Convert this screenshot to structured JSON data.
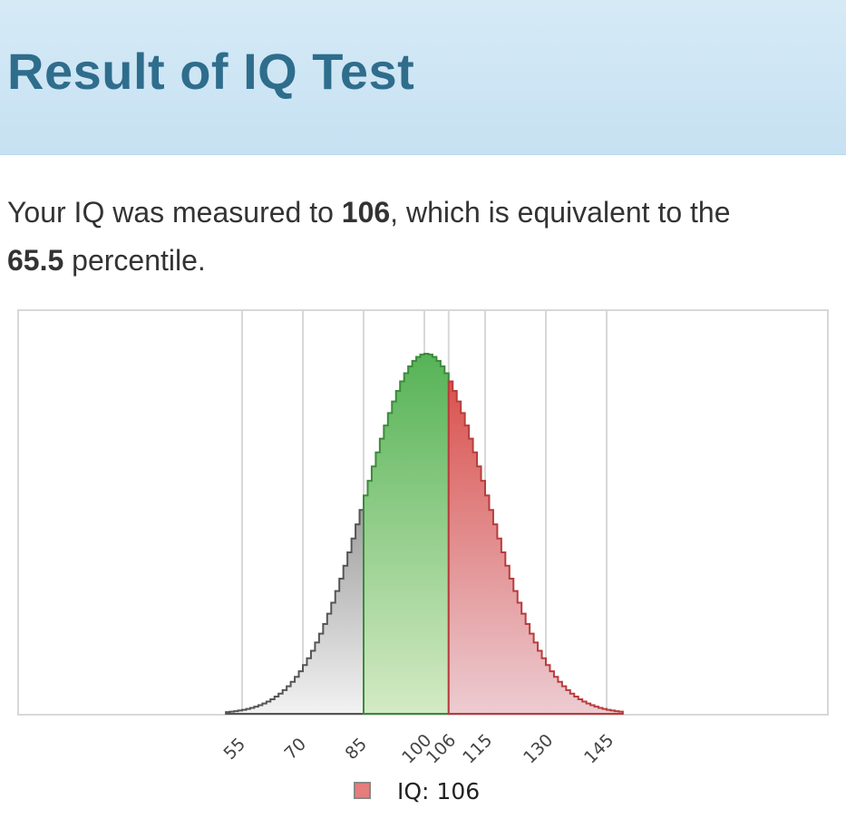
{
  "header": {
    "title": "Result of IQ Test"
  },
  "result": {
    "prefix": "Your IQ was measured to ",
    "iq": "106",
    "middle": ", which is equivalent to the ",
    "percentile": "65.5",
    "suffix": " percentile."
  },
  "chart_data": {
    "type": "area",
    "title": "",
    "xlabel": "",
    "ylabel": "",
    "distribution": {
      "mean": 100,
      "sd": 15
    },
    "x_range": [
      51,
      149
    ],
    "x_ticks": [
      "55",
      "70",
      "85",
      "100",
      "106",
      "115",
      "130",
      "145"
    ],
    "x_tick_values": [
      55,
      70,
      85,
      100,
      106,
      115,
      130,
      145
    ],
    "regions": [
      {
        "from": 51,
        "to": 85,
        "color": "#bdbdbd"
      },
      {
        "from": 85,
        "to": 106,
        "color": "#5cb85c"
      },
      {
        "from": 106,
        "to": 149,
        "color": "#d9534f"
      }
    ],
    "grid": true,
    "legend": {
      "label": "IQ: 106",
      "color": "#e06666",
      "placement": "bottom"
    }
  }
}
